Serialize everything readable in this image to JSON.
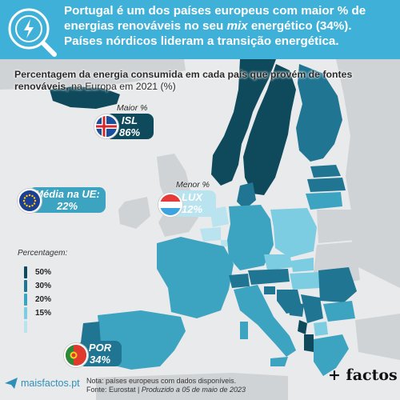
{
  "header": {
    "line1": "Portugal é um dos países europeus com maior % de",
    "line2a": "energias renováveis no seu ",
    "line2_em": "mix",
    "line2b": " energético (34%).",
    "line3": "Países nórdicos lideram a transição energética."
  },
  "subtitle": {
    "bold": "Percentagem da energia consumida em cada país que provém de fontes renováveis,",
    "rest": " na Europa em 2021 (%)"
  },
  "callouts": {
    "max": {
      "caption": "Maior %",
      "code": "ISL",
      "value": "86%"
    },
    "min": {
      "caption": "Menor %",
      "code": "LUX",
      "value": "12%"
    },
    "eu": {
      "label": "Média na UE:",
      "value": "22%"
    },
    "por": {
      "code": "POR",
      "value": "34%"
    }
  },
  "legend": {
    "title": "Percentagem:",
    "items": [
      {
        "label": "50%",
        "color": "#0e4a5c"
      },
      {
        "label": "30%",
        "color": "#1f7592"
      },
      {
        "label": "20%",
        "color": "#3ca3c1"
      },
      {
        "label": "15%",
        "color": "#7ccde2"
      }
    ]
  },
  "footer": {
    "brand": "maisfactos.pt",
    "note_line1": "Nota: países europeus com dados disponíveis.",
    "note_line2a": "Fonte: Eurostat | ",
    "note_line2b": "Produzido a 05 de maio de 2023",
    "logo": "+ factos"
  },
  "colors": {
    "header_bg": "#3fb0d8",
    "very_dark": "#0e4a5c",
    "dark": "#1f7592",
    "medium": "#3ca3c1",
    "light": "#7ccde2",
    "very_light": "#b8e3ef",
    "no_data": "#cfd3d6"
  }
}
